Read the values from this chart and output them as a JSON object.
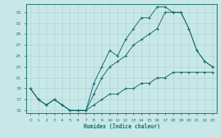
{
  "xlabel": "Humidex (Indice chaleur)",
  "bg_color": "#c8e8e8",
  "grid_color": "#b0d4d4",
  "line_color": "#1a6b6b",
  "xlim": [
    -0.5,
    23.5
  ],
  "ylim": [
    14.5,
    34.5
  ],
  "xticks": [
    0,
    1,
    2,
    3,
    4,
    5,
    6,
    7,
    8,
    9,
    10,
    11,
    12,
    13,
    14,
    15,
    16,
    17,
    18,
    19,
    20,
    21,
    22,
    23
  ],
  "yticks": [
    15,
    17,
    19,
    21,
    23,
    25,
    27,
    29,
    31,
    33
  ],
  "line1_x": [
    0,
    1,
    2,
    3,
    4,
    5,
    6,
    7,
    8,
    9,
    10,
    11,
    12,
    13,
    14,
    15,
    16,
    17,
    18,
    19,
    20,
    21,
    22,
    23
  ],
  "line1_y": [
    19,
    17,
    16,
    17,
    16,
    15,
    15,
    15,
    20,
    23,
    26,
    25,
    28,
    30,
    32,
    32,
    34,
    34,
    33,
    33,
    30,
    26,
    24,
    23
  ],
  "line2_x": [
    0,
    1,
    2,
    3,
    4,
    5,
    6,
    7,
    8,
    9,
    10,
    11,
    12,
    13,
    14,
    15,
    16,
    17,
    18,
    19,
    20,
    21,
    22,
    23
  ],
  "line2_y": [
    19,
    17,
    16,
    17,
    16,
    15,
    15,
    15,
    18,
    21,
    23,
    24,
    25,
    27,
    28,
    29,
    30,
    33,
    33,
    33,
    30,
    26,
    24,
    23
  ],
  "line3_x": [
    0,
    1,
    2,
    3,
    4,
    5,
    6,
    7,
    8,
    9,
    10,
    11,
    12,
    13,
    14,
    15,
    16,
    17,
    18,
    19,
    20,
    21,
    22,
    23
  ],
  "line3_y": [
    19,
    17,
    16,
    17,
    16,
    15,
    15,
    15,
    16,
    17,
    18,
    18,
    19,
    19,
    20,
    20,
    21,
    21,
    22,
    22,
    22,
    22,
    22,
    22
  ]
}
